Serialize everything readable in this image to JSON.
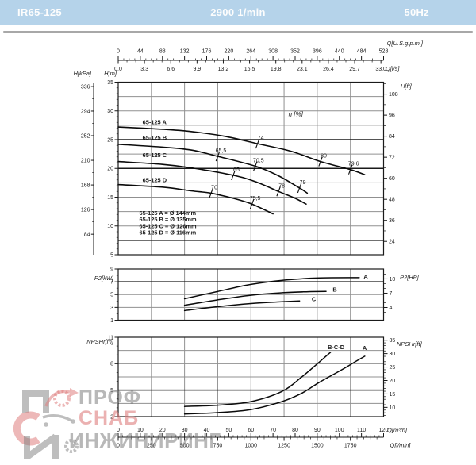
{
  "header": {
    "model": "IR65-125",
    "speed": "2900 1/min",
    "frequency": "50Hz"
  },
  "watermark": {
    "word1": "ПРОФ",
    "word2": "СНАБ",
    "word3": "ИНЖИНИРИНГ"
  },
  "colors": {
    "header_bg": "#b5d3ea",
    "grid": "#909090",
    "ink": "#1a1a1a",
    "watermark_gray": "#7d7d7d",
    "watermark_red": "#de7d7d"
  },
  "chart_data": [
    {
      "id": "head-flow",
      "type": "line",
      "eta_label": "η [%]",
      "eta_pos": [
        77,
        29.1
      ],
      "x_range_m3h": [
        0,
        120
      ],
      "x_top_gpm": {
        "label": "Q[U.S.g.p.m.]",
        "ticks": [
          0,
          44,
          88,
          132,
          176,
          220,
          264,
          308,
          352,
          396,
          440,
          484,
          528
        ],
        "max": 528
      },
      "x_top_ls": {
        "label": "Q[l/s]",
        "tick_labels": [
          "0,0",
          "3,3",
          "6,6",
          "9,9",
          "13,2",
          "16,5",
          "19,8",
          "23,1",
          "26,4",
          "29,7",
          "33,0"
        ],
        "tick_values": [
          0,
          3.3,
          6.6,
          9.9,
          13.2,
          16.5,
          19.8,
          23.1,
          26.4,
          29.7,
          33
        ],
        "max": 33.3333
      },
      "y_kpa": {
        "label": "H[kPa]",
        "ticks": [
          336,
          294,
          252,
          210,
          168,
          126,
          84
        ]
      },
      "y_m": {
        "label": "H[m]",
        "ticks": [
          35,
          30,
          25,
          20,
          15,
          10,
          5
        ],
        "range": [
          5,
          35
        ]
      },
      "y_ft": {
        "label": "H[ft]",
        "ticks": [
          108,
          96,
          84,
          72,
          60,
          48,
          36,
          24
        ]
      },
      "series": [
        {
          "name": "65-125 A",
          "label_pos": [
            11,
            27.7
          ],
          "points": [
            [
              0,
              27.2
            ],
            [
              20,
              26.8
            ],
            [
              33,
              26.4
            ],
            [
              48,
              25.6
            ],
            [
              63,
              24.3
            ],
            [
              78,
              23.0
            ],
            [
              91.5,
              21.2
            ],
            [
              105,
              19.8
            ],
            [
              111.5,
              18.9
            ]
          ],
          "eff_markers": [
            {
              "label": "74",
              "q": 63,
              "h": 24.3
            },
            {
              "label": "80",
              "q": 91.5,
              "h": 21.2
            },
            {
              "label": "79,6",
              "q": 105,
              "h": 19.8
            }
          ]
        },
        {
          "name": "65-125 B",
          "label_pos": [
            11,
            25.0
          ],
          "points": [
            [
              0,
              24.2
            ],
            [
              20,
              23.7
            ],
            [
              33,
              23.2
            ],
            [
              45,
              22.1
            ],
            [
              62,
              20.4
            ],
            [
              72,
              18.8
            ],
            [
              82,
              16.6
            ],
            [
              85.5,
              15.7
            ]
          ],
          "eff_markers": [
            {
              "label": "65,5",
              "q": 45,
              "h": 22.1
            },
            {
              "label": "70,5",
              "q": 62,
              "h": 20.4
            },
            {
              "label": "79",
              "q": 82,
              "h": 16.6
            }
          ]
        },
        {
          "name": "65-125 C",
          "label_pos": [
            11,
            21.95
          ],
          "points": [
            [
              0,
              21.2
            ],
            [
              20,
              20.7
            ],
            [
              33,
              20.1
            ],
            [
              52,
              18.8
            ],
            [
              62,
              17.7
            ],
            [
              72.5,
              16.0
            ],
            [
              80,
              14.8
            ],
            [
              85,
              13.8
            ]
          ],
          "eff_markers": [
            {
              "label": "65",
              "q": 52,
              "h": 18.8
            },
            {
              "label": "78",
              "q": 72.5,
              "h": 16.0
            }
          ]
        },
        {
          "name": "65-125 D",
          "label_pos": [
            11,
            17.65
          ],
          "points": [
            [
              0,
              17.2
            ],
            [
              20,
              16.75
            ],
            [
              33,
              16.1
            ],
            [
              42,
              15.7
            ],
            [
              52,
              14.8
            ],
            [
              60.5,
              13.8
            ],
            [
              70,
              12.1
            ]
          ],
          "eff_markers": [
            {
              "label": "70",
              "q": 42,
              "h": 15.7
            },
            {
              "label": "75,5",
              "q": 60.5,
              "h": 13.8
            }
          ]
        }
      ],
      "legend": [
        "65-125 A = Ø 144mm",
        "65-125 B = Ø 135mm",
        "65-125 C = Ø 126mm",
        "65-125 D = Ø 116mm"
      ],
      "legend_pos": [
        9.5,
        11.9
      ]
    },
    {
      "id": "power",
      "type": "line",
      "y_kw": {
        "label": "P2[kW]",
        "ticks": [
          9,
          7,
          5,
          3,
          1
        ],
        "range": [
          1,
          9
        ]
      },
      "y_hp": {
        "label": "P2[HP]",
        "ticks": [
          10,
          7,
          4
        ]
      },
      "series": [
        {
          "name": "A",
          "label_pos": [
            111,
            7.5
          ],
          "points": [
            [
              30,
              4.35
            ],
            [
              44.5,
              5.45
            ],
            [
              60,
              6.6
            ],
            [
              76,
              7.3
            ],
            [
              91,
              7.6
            ],
            [
              109,
              7.65
            ]
          ]
        },
        {
          "name": "B",
          "label_pos": [
            97,
            5.45
          ],
          "points": [
            [
              30,
              3.35
            ],
            [
              44.5,
              4.15
            ],
            [
              60,
              4.9
            ],
            [
              75,
              5.3
            ],
            [
              86,
              5.45
            ],
            [
              94,
              5.5
            ]
          ]
        },
        {
          "name": "C",
          "label_pos": [
            87.5,
            4.0
          ],
          "points": [
            [
              30,
              2.5
            ],
            [
              44.5,
              3.1
            ],
            [
              60,
              3.6
            ],
            [
              72,
              3.85
            ],
            [
              82,
              4.0
            ]
          ]
        }
      ]
    },
    {
      "id": "npshr",
      "type": "line",
      "y_m": {
        "label": "NPSHr[m]",
        "ticks": [
          11,
          8,
          5,
          2
        ],
        "range": [
          2,
          11
        ]
      },
      "y_ft": {
        "label": "NPSHr[ft]",
        "ticks": [
          35,
          30,
          25,
          20,
          15,
          10
        ]
      },
      "x_bottom_m3h": {
        "label": "Q[m³/h]",
        "ticks": [
          0,
          10,
          20,
          30,
          40,
          50,
          60,
          70,
          80,
          90,
          100,
          110,
          120
        ]
      },
      "x_bottom_lmin": {
        "label": "Q[l/min]",
        "ticks": [
          0,
          250,
          500,
          750,
          1000,
          1250,
          1500,
          1750
        ]
      },
      "series": [
        {
          "name": "B-C-D",
          "label_pos": [
            98.5,
            9.65
          ],
          "points": [
            [
              30,
              3.15
            ],
            [
              45,
              3.3
            ],
            [
              60,
              3.7
            ],
            [
              74,
              4.85
            ],
            [
              83,
              6.5
            ],
            [
              91,
              8.2
            ],
            [
              96,
              9.3
            ]
          ]
        },
        {
          "name": "A",
          "label_pos": [
            111.4,
            9.55
          ],
          "points": [
            [
              30,
              2.3
            ],
            [
              45,
              2.45
            ],
            [
              60,
              2.8
            ],
            [
              74,
              3.7
            ],
            [
              83,
              4.65
            ],
            [
              91,
              5.9
            ],
            [
              101,
              7.3
            ],
            [
              107,
              8.2
            ],
            [
              111.5,
              8.85
            ]
          ]
        }
      ]
    }
  ]
}
